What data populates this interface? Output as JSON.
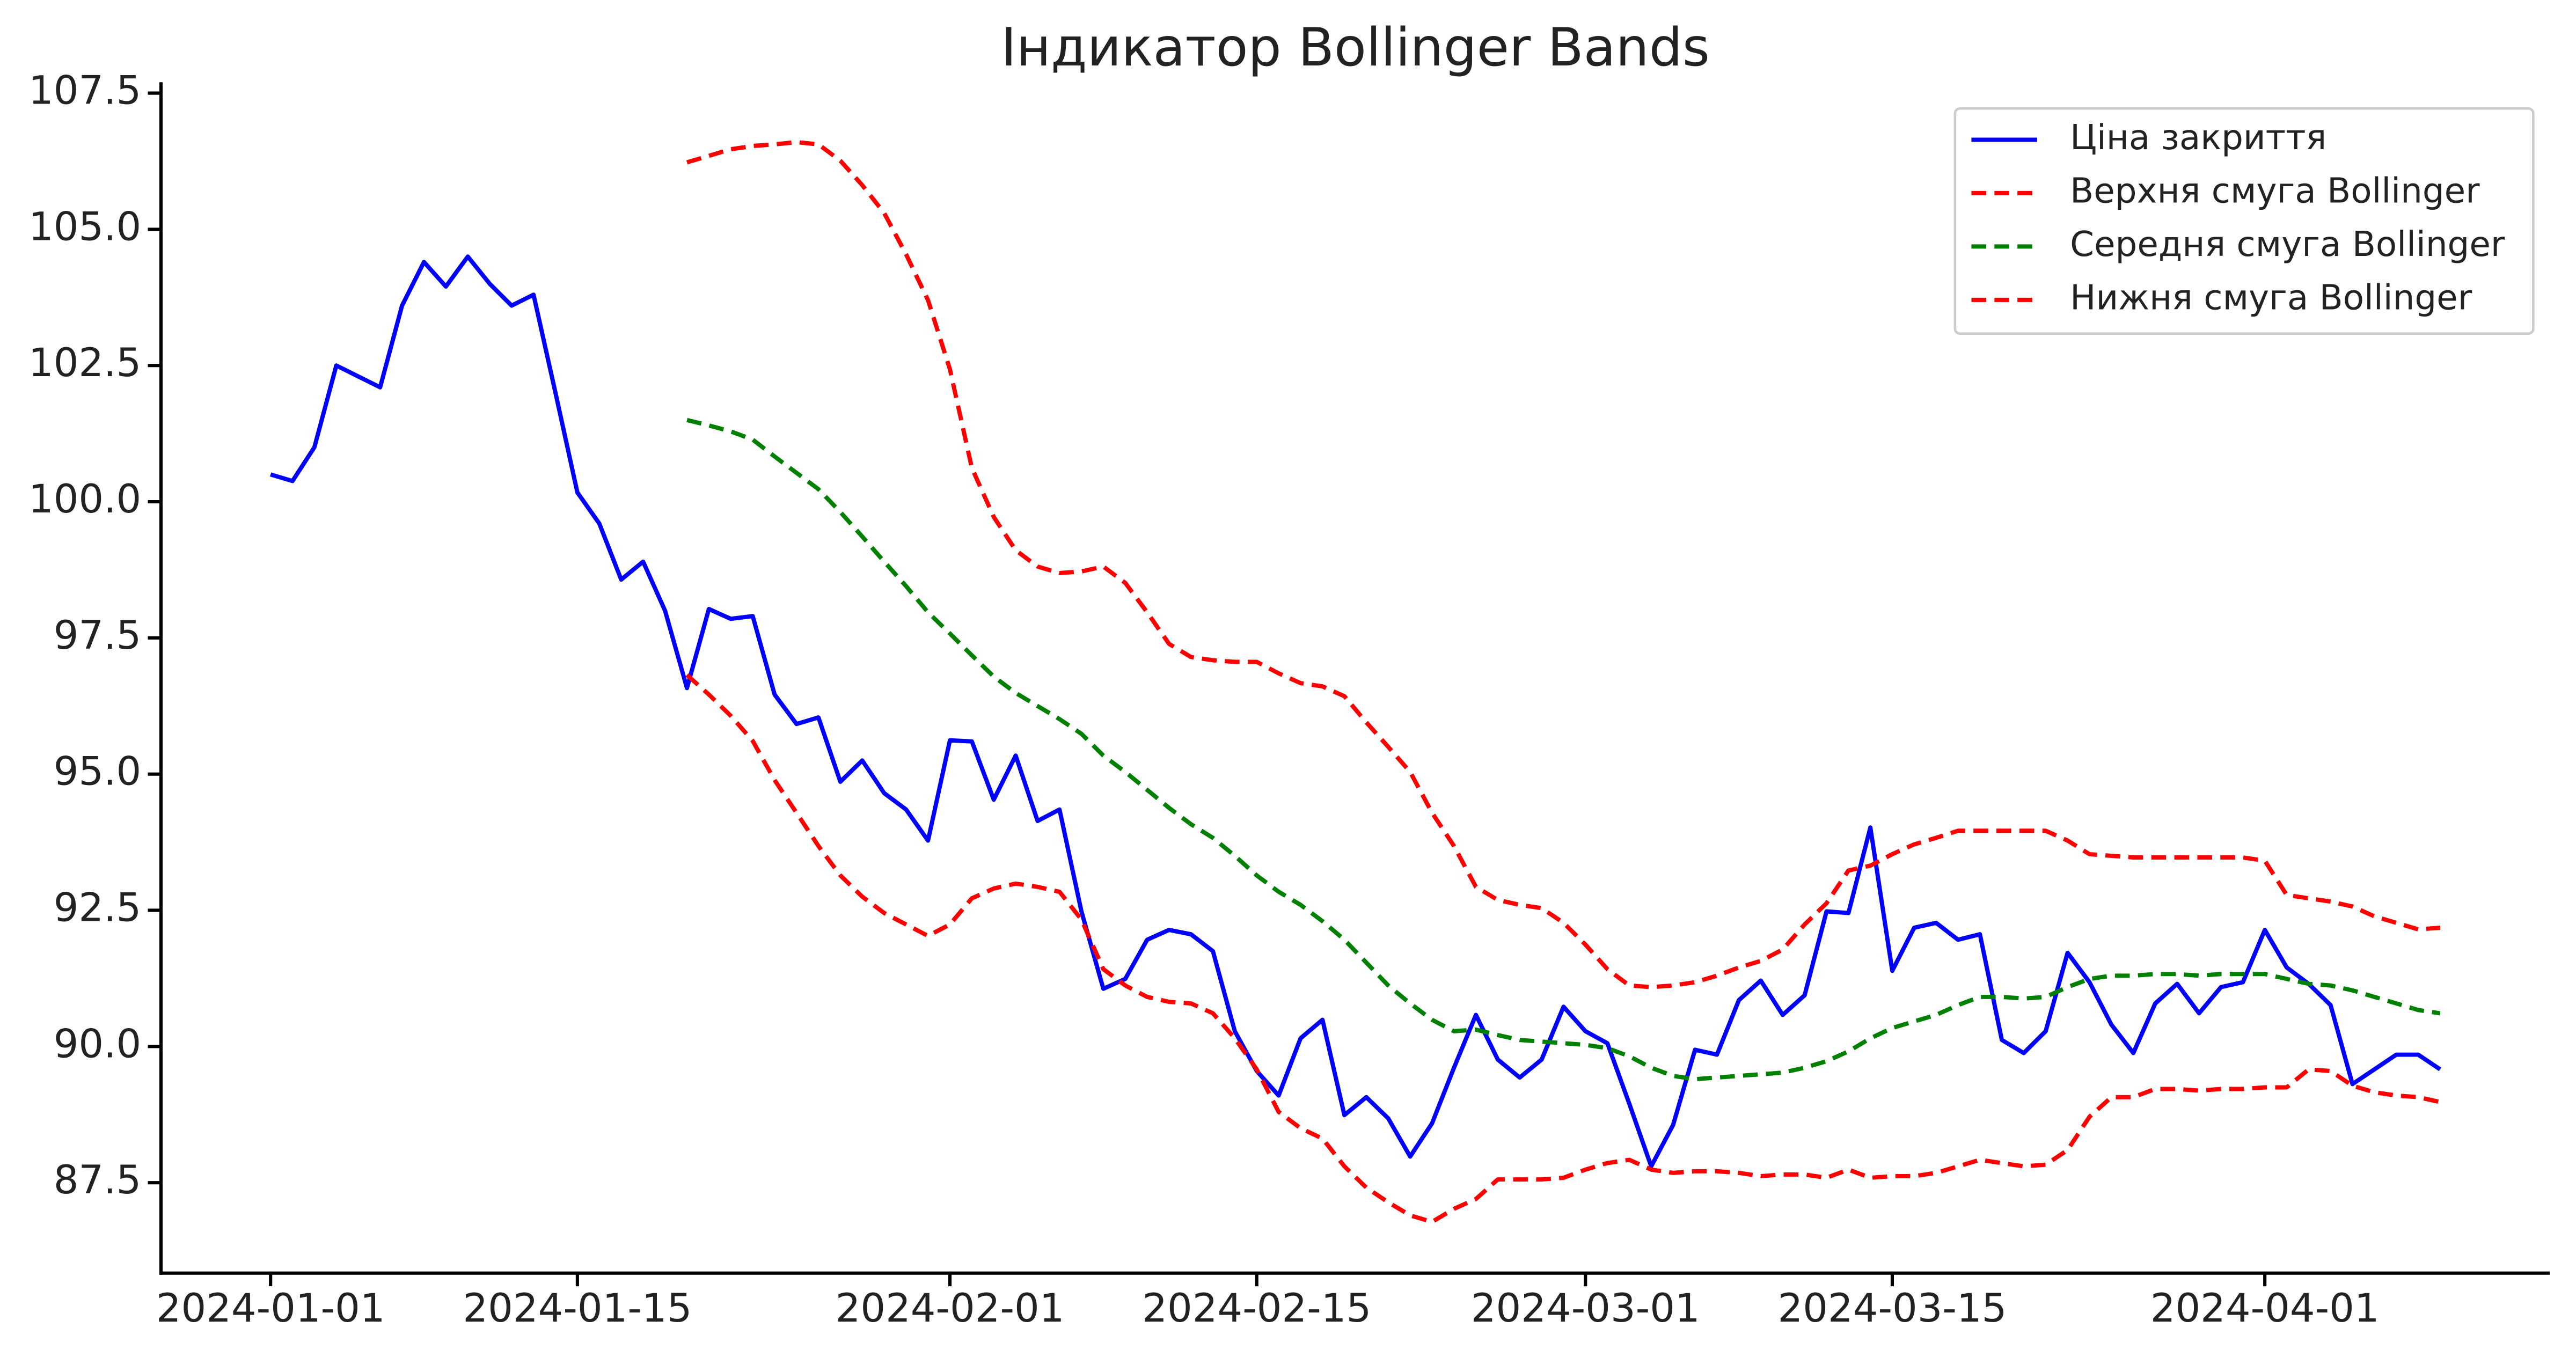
{
  "chart_data": {
    "type": "line",
    "title": "Індикатор Bollinger Bands",
    "x": [
      "2024-01-01",
      "2024-01-02",
      "2024-01-03",
      "2024-01-04",
      "2024-01-05",
      "2024-01-06",
      "2024-01-07",
      "2024-01-08",
      "2024-01-09",
      "2024-01-10",
      "2024-01-11",
      "2024-01-12",
      "2024-01-13",
      "2024-01-14",
      "2024-01-15",
      "2024-01-16",
      "2024-01-17",
      "2024-01-18",
      "2024-01-19",
      "2024-01-20",
      "2024-01-21",
      "2024-01-22",
      "2024-01-23",
      "2024-01-24",
      "2024-01-25",
      "2024-01-26",
      "2024-01-27",
      "2024-01-28",
      "2024-01-29",
      "2024-01-30",
      "2024-01-31",
      "2024-02-01",
      "2024-02-02",
      "2024-02-03",
      "2024-02-04",
      "2024-02-05",
      "2024-02-06",
      "2024-02-07",
      "2024-02-08",
      "2024-02-09",
      "2024-02-10",
      "2024-02-11",
      "2024-02-12",
      "2024-02-13",
      "2024-02-14",
      "2024-02-15",
      "2024-02-16",
      "2024-02-17",
      "2024-02-18",
      "2024-02-19",
      "2024-02-20",
      "2024-02-21",
      "2024-02-22",
      "2024-02-23",
      "2024-02-24",
      "2024-02-25",
      "2024-02-26",
      "2024-02-27",
      "2024-02-28",
      "2024-02-29",
      "2024-03-01",
      "2024-03-02",
      "2024-03-03",
      "2024-03-04",
      "2024-03-05",
      "2024-03-06",
      "2024-03-07",
      "2024-03-08",
      "2024-03-09",
      "2024-03-10",
      "2024-03-11",
      "2024-03-12",
      "2024-03-13",
      "2024-03-14",
      "2024-03-15",
      "2024-03-16",
      "2024-03-17",
      "2024-03-18",
      "2024-03-19",
      "2024-03-20",
      "2024-03-21",
      "2024-03-22",
      "2024-03-23",
      "2024-03-24",
      "2024-03-25",
      "2024-03-26",
      "2024-03-27",
      "2024-03-28",
      "2024-03-29",
      "2024-03-30",
      "2024-03-31",
      "2024-04-01",
      "2024-04-02",
      "2024-04-03",
      "2024-04-04",
      "2024-04-05",
      "2024-04-06",
      "2024-04-07",
      "2024-04-08",
      "2024-04-09"
    ],
    "series": [
      {
        "name": "Ціна закриття",
        "color": "#0000ff",
        "dashed": false,
        "values": [
          100.5,
          100.38,
          101.0,
          102.5,
          102.3,
          102.1,
          103.6,
          104.4,
          103.95,
          104.5,
          104.0,
          103.6,
          103.8,
          102.0,
          100.17,
          99.6,
          98.57,
          98.9,
          98.0,
          96.58,
          98.03,
          97.85,
          97.9,
          96.46,
          95.92,
          96.04,
          94.86,
          95.25,
          94.65,
          94.35,
          93.78,
          95.62,
          95.6,
          94.53,
          95.34,
          94.14,
          94.35,
          92.48,
          91.06,
          91.24,
          91.96,
          92.14,
          92.06,
          91.75,
          90.28,
          89.55,
          89.1,
          90.15,
          90.49,
          88.74,
          89.07,
          88.68,
          87.98,
          88.59,
          89.61,
          90.58,
          89.76,
          89.43,
          89.76,
          90.73,
          90.28,
          90.06,
          88.95,
          87.8,
          88.56,
          89.94,
          89.85,
          90.85,
          91.21,
          90.58,
          90.94,
          92.48,
          92.45,
          94.02,
          91.39,
          92.18,
          92.27,
          91.96,
          92.06,
          90.12,
          89.88,
          90.28,
          91.72,
          91.18,
          90.4,
          89.88,
          90.79,
          91.15,
          90.61,
          91.09,
          91.18,
          92.14,
          91.45,
          91.15,
          90.76,
          89.31,
          89.58,
          89.85,
          89.85,
          89.58
        ]
      },
      {
        "name": "Верхня смуга Bollinger",
        "color": "#ff0000",
        "dashed": true,
        "values": [
          null,
          null,
          null,
          null,
          null,
          null,
          null,
          null,
          null,
          null,
          null,
          null,
          null,
          null,
          null,
          null,
          null,
          null,
          null,
          106.23,
          106.35,
          106.47,
          106.53,
          106.56,
          106.6,
          106.56,
          106.26,
          105.81,
          105.3,
          104.54,
          103.7,
          102.43,
          100.62,
          99.72,
          99.11,
          98.81,
          98.69,
          98.72,
          98.81,
          98.51,
          97.97,
          97.39,
          97.15,
          97.09,
          97.06,
          97.06,
          96.85,
          96.67,
          96.61,
          96.43,
          95.95,
          95.5,
          95.04,
          94.29,
          93.68,
          92.93,
          92.69,
          92.6,
          92.54,
          92.27,
          91.87,
          91.42,
          91.12,
          91.09,
          91.12,
          91.18,
          91.3,
          91.45,
          91.57,
          91.78,
          92.24,
          92.63,
          93.23,
          93.32,
          93.53,
          93.71,
          93.83,
          93.96,
          93.96,
          93.96,
          93.96,
          93.96,
          93.78,
          93.53,
          93.5,
          93.47,
          93.47,
          93.47,
          93.47,
          93.47,
          93.47,
          93.41,
          92.78,
          92.72,
          92.66,
          92.57,
          92.39,
          92.27,
          92.15,
          92.18
        ]
      },
      {
        "name": "Середня смуга Bollinger",
        "color": "#008000",
        "dashed": true,
        "values": [
          null,
          null,
          null,
          null,
          null,
          null,
          null,
          null,
          null,
          null,
          null,
          null,
          null,
          null,
          null,
          null,
          null,
          null,
          null,
          101.5,
          101.4,
          101.29,
          101.14,
          100.83,
          100.53,
          100.23,
          99.81,
          99.36,
          98.9,
          98.45,
          97.97,
          97.58,
          97.18,
          96.79,
          96.49,
          96.25,
          96.01,
          95.74,
          95.34,
          95.04,
          94.71,
          94.38,
          94.08,
          93.83,
          93.5,
          93.14,
          92.84,
          92.6,
          92.3,
          91.96,
          91.54,
          91.12,
          90.79,
          90.49,
          90.28,
          90.31,
          90.21,
          90.12,
          90.09,
          90.06,
          90.03,
          89.97,
          89.82,
          89.61,
          89.46,
          89.4,
          89.43,
          89.46,
          89.49,
          89.52,
          89.61,
          89.73,
          89.91,
          90.15,
          90.34,
          90.46,
          90.58,
          90.76,
          90.91,
          90.91,
          90.88,
          90.91,
          91.09,
          91.24,
          91.3,
          91.3,
          91.33,
          91.33,
          91.3,
          91.33,
          91.33,
          91.33,
          91.24,
          91.15,
          91.12,
          91.03,
          90.91,
          90.79,
          90.67,
          90.61
        ]
      },
      {
        "name": "Нижня смуга Bollinger",
        "color": "#ff0000",
        "dashed": true,
        "values": [
          null,
          null,
          null,
          null,
          null,
          null,
          null,
          null,
          null,
          null,
          null,
          null,
          null,
          null,
          null,
          null,
          null,
          null,
          null,
          96.82,
          96.46,
          96.07,
          95.61,
          94.89,
          94.29,
          93.68,
          93.14,
          92.75,
          92.45,
          92.24,
          92.03,
          92.24,
          92.72,
          92.9,
          92.99,
          92.93,
          92.84,
          92.33,
          91.42,
          91.12,
          90.91,
          90.82,
          90.79,
          90.61,
          90.15,
          89.58,
          88.8,
          88.5,
          88.31,
          87.8,
          87.41,
          87.14,
          86.9,
          86.78,
          87.02,
          87.2,
          87.56,
          87.56,
          87.56,
          87.59,
          87.74,
          87.86,
          87.92,
          87.74,
          87.68,
          87.71,
          87.71,
          87.68,
          87.62,
          87.65,
          87.65,
          87.59,
          87.74,
          87.59,
          87.62,
          87.62,
          87.68,
          87.8,
          87.92,
          87.86,
          87.8,
          87.83,
          88.1,
          88.71,
          89.07,
          89.07,
          89.22,
          89.22,
          89.19,
          89.22,
          89.22,
          89.25,
          89.25,
          89.58,
          89.55,
          89.28,
          89.16,
          89.1,
          89.07,
          88.98
        ]
      }
    ],
    "xlim": [
      "2023-12-27",
      "2024-04-14"
    ],
    "xticks": [
      "2024-01-01",
      "2024-01-15",
      "2024-02-01",
      "2024-02-15",
      "2024-03-01",
      "2024-03-15",
      "2024-04-01"
    ],
    "ylim": [
      85.84,
      107.7
    ],
    "yticks": [
      87.5,
      {
        "value": 90,
        "label": "90.0"
      },
      92.5,
      {
        "value": 95,
        "label": "95.0"
      },
      97.5,
      {
        "value": 100,
        "label": "100.0"
      },
      102.5,
      {
        "value": 105,
        "label": "105.0"
      },
      107.5
    ],
    "grid": false,
    "legend": "upper right"
  }
}
